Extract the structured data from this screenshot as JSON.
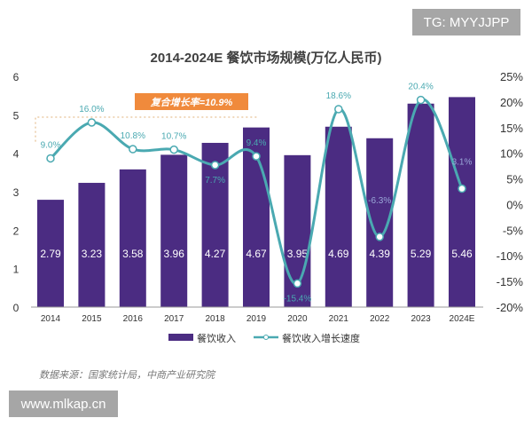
{
  "chart_data": {
    "type": "bar+line",
    "title": "2014-2024E 餐饮市场规模(万亿人民币)",
    "categories": [
      "2014",
      "2015",
      "2016",
      "2017",
      "2018",
      "2019",
      "2020",
      "2021",
      "2022",
      "2023",
      "2024E"
    ],
    "series": [
      {
        "name": "餐饮收入",
        "type": "bar",
        "axis": "left",
        "color": "#4b2c82",
        "values": [
          2.79,
          3.23,
          3.58,
          3.96,
          4.27,
          4.67,
          3.95,
          4.69,
          4.39,
          5.29,
          5.46
        ],
        "labels": [
          "2.79",
          "3.23",
          "3.58",
          "3.96",
          "4.27",
          "4.67",
          "3.95",
          "4.69",
          "4.39",
          "5.29",
          "5.46"
        ]
      },
      {
        "name": "餐饮收入增长速度",
        "type": "line",
        "axis": "right",
        "color": "#4aa9b1",
        "values": [
          9.0,
          16.0,
          10.8,
          10.7,
          7.7,
          9.4,
          -15.4,
          18.6,
          -6.3,
          20.4,
          3.1
        ],
        "labels": [
          "9.0%",
          "16.0%",
          "10.8%",
          "10.7%",
          "7.7%",
          "9.4%",
          "-15.4%",
          "18.6%",
          "-6.3%",
          "20.4%",
          "3.1%"
        ]
      }
    ],
    "left_axis": {
      "range": [
        0,
        6
      ],
      "ticks": [
        "0",
        "1",
        "2",
        "3",
        "4",
        "5",
        "6"
      ]
    },
    "right_axis": {
      "range": [
        -20,
        25
      ],
      "ticks": [
        "-20%",
        "-15%",
        "-10%",
        "-5%",
        "0%",
        "5%",
        "10%",
        "15%",
        "20%",
        "25%"
      ]
    },
    "annotation": "复合增长率=10.9%",
    "annotation_color": "#f08a3c",
    "legend_position": "bottom",
    "grid": false,
    "source": "数据来源：国家统计局，中商产业研究院"
  },
  "watermarks": {
    "top_right": "TG: MYYJJPP",
    "bottom_left": "www.mlkap.cn"
  }
}
